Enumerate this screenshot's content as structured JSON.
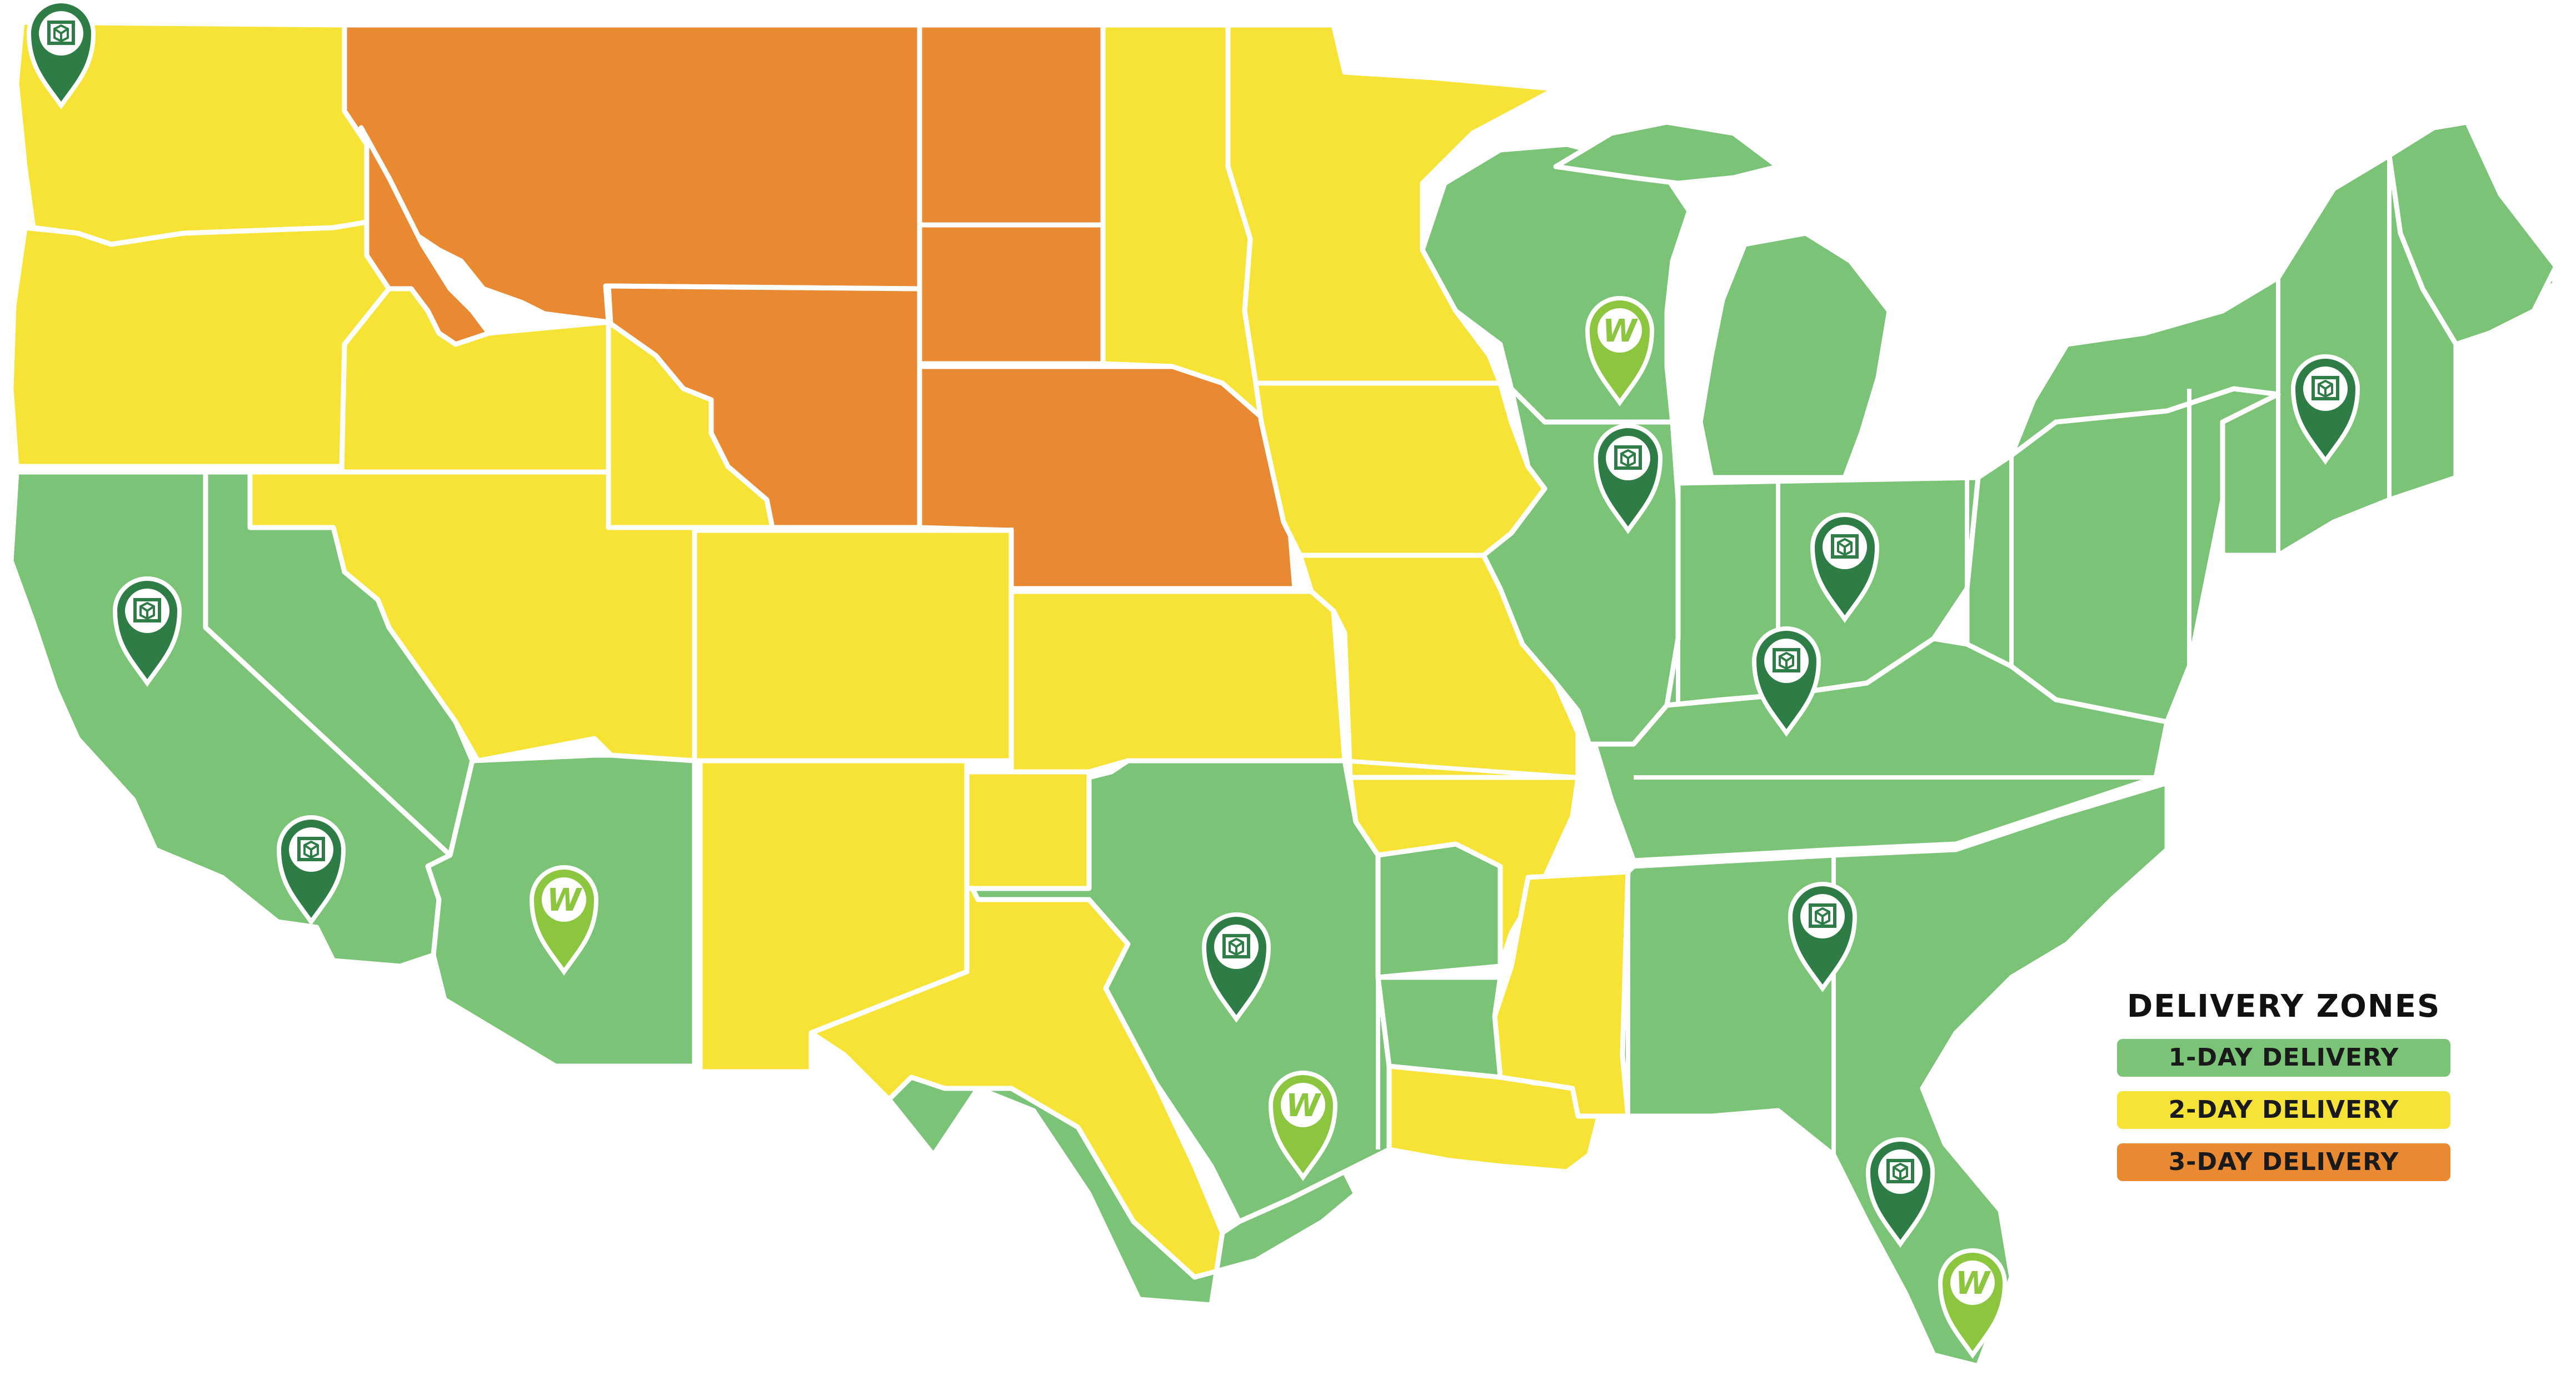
{
  "colors": {
    "one_day": "#7ac377",
    "two_day": "#f7e335",
    "three_day": "#e98931",
    "border": "#ffffff",
    "pin_dark": "#2f7d46",
    "pin_light": "#8cc63f"
  },
  "legend": {
    "title": "DELIVERY ZONES",
    "items": [
      {
        "label": "1-DAY DELIVERY",
        "color": "#7ac377"
      },
      {
        "label": "2-DAY DELIVERY",
        "color": "#f7e335"
      },
      {
        "label": "3-DAY DELIVERY",
        "color": "#e98931"
      }
    ]
  },
  "pins": {
    "warehouse_icon": "warehouse-box-icon",
    "partner_icon": "partner-w-icon",
    "partner_letter": "W"
  }
}
